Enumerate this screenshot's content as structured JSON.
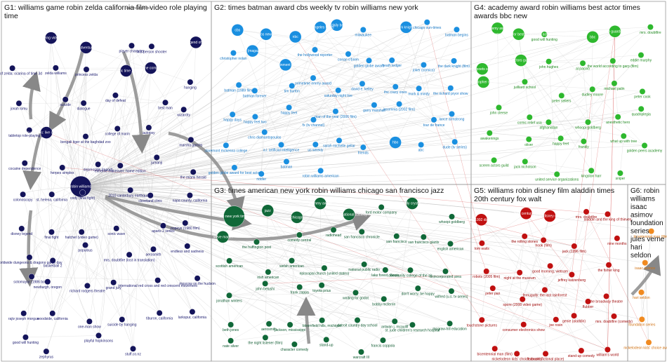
{
  "groups": [
    {
      "id": "G1",
      "title_lines": [
        "G1: williams game robin zelda california film video role playing",
        "time"
      ],
      "color": "#14145a",
      "label_color": "#1a1a6e"
    },
    {
      "id": "G2",
      "title_lines": [
        "G2: times batman award cbs weekly tv robin williams new york"
      ],
      "color": "#1a8fe0",
      "label_color": "#1676c4"
    },
    {
      "id": "G3",
      "title_lines": [
        "G3: times american new york robin williams chicago san francisco jazz"
      ],
      "color": "#106838",
      "label_color": "#0e5a30"
    },
    {
      "id": "G4",
      "title_lines": [
        "G4: academy award robin williams best actor times",
        "awards bbc new"
      ],
      "color": "#2eb82e",
      "label_color": "#228a22"
    },
    {
      "id": "G5",
      "title_lines": [
        "G5: williams robin disney film aladdin times",
        "20th century fox walt"
      ],
      "color": "#c01010",
      "label_color": "#a00c0c"
    },
    {
      "id": "G6",
      "title_lines": [
        "G6: robin",
        "williams",
        "isaac",
        "asimov",
        "foundation",
        "series",
        "jules verne",
        "hari",
        "seldon"
      ],
      "color": "#f08a20",
      "label_color": "#d07010"
    }
  ],
  "nodes": {
    "G1": [
      {
        "label": "robin williams",
        "size": 3
      },
      {
        "label": "role-playing video game",
        "size": 2
      },
      {
        "label": "action-adventure game",
        "size": 2
      },
      {
        "label": "player character",
        "size": 1
      },
      {
        "label": "first-person shooter",
        "size": 1
      },
      {
        "label": "the legend of zelda",
        "size": 2
      },
      {
        "label": "the legend of zelda: ocarina of time 3d",
        "size": 1
      },
      {
        "label": "zelda williams",
        "size": 1
      },
      {
        "label": "princess zelda",
        "size": 1
      },
      {
        "label": "pacific time zone",
        "size": 2
      },
      {
        "label": "tribune company",
        "size": 2
      },
      {
        "label": "hanging",
        "size": 1
      },
      {
        "label": "jonah lomu",
        "size": 1
      },
      {
        "label": "suicide",
        "size": 1
      },
      {
        "label": "dialogue",
        "size": 1
      },
      {
        "label": "day of defeat",
        "size": 1
      },
      {
        "label": "best man",
        "size": 1
      },
      {
        "label": "wizardry",
        "size": 1
      },
      {
        "label": "tabletop role-playing game",
        "size": 1
      },
      {
        "label": "robin williams: live on broadway",
        "size": 2
      },
      {
        "label": "bengali tiger at the baghdad zoo",
        "size": 1
      },
      {
        "label": "college of marin",
        "size": 1
      },
      {
        "label": "autopsy",
        "size": 1
      },
      {
        "label": "marsha garces",
        "size": 1
      },
      {
        "label": "cocaine dependence",
        "size": 1
      },
      {
        "label": "herpes simplex",
        "size": 1
      },
      {
        "label": "depression (mood)",
        "size": 1
      },
      {
        "label": "extreme makeover: home edition",
        "size": 1
      },
      {
        "label": "jumanji",
        "size": 1
      },
      {
        "label": "the miami herald",
        "size": 1
      },
      {
        "label": "colonoscopy",
        "size": 1
      },
      {
        "label": "st. helena, california",
        "size": 1
      },
      {
        "label": "cody (final fight)",
        "size": 1
      },
      {
        "label": "2010 canterbury earthquake",
        "size": 1
      },
      {
        "label": "cleveland clinic",
        "size": 1
      },
      {
        "label": "napa county, california",
        "size": 1
      },
      {
        "label": "disney legend",
        "size": 1
      },
      {
        "label": "final fight",
        "size": 1
      },
      {
        "label": "hatchet (video game)",
        "size": 1
      },
      {
        "label": "sonic wave",
        "size": 1
      },
      {
        "label": "aparis 2 series",
        "size": 1
      },
      {
        "label": "popeye (1980 film)",
        "size": 1
      },
      {
        "label": "worldwide dungeons & dragons game day",
        "size": 1
      },
      {
        "label": "basketball 2",
        "size": 1
      },
      {
        "label": "populous",
        "size": 1
      },
      {
        "label": "mrs. doubtfire (lost in translation)",
        "size": 1
      },
      {
        "label": "aerosmith",
        "size": 1
      },
      {
        "label": "endless and sadness",
        "size": 1
      },
      {
        "label": "sotomayor (1986 book)",
        "size": 1
      },
      {
        "label": "newburgh, oregon",
        "size": 1
      },
      {
        "label": "richard rodgers theatre",
        "size": 1
      },
      {
        "label": "grand jury",
        "size": 1
      },
      {
        "label": "international red cross and red crescent movement",
        "size": 1
      },
      {
        "label": "moscow on the hudson",
        "size": 1
      },
      {
        "label": "rajiv joseph morgue",
        "size": 1
      },
      {
        "label": "woodside, california",
        "size": 1
      },
      {
        "label": "one-man show",
        "size": 1
      },
      {
        "label": "suicide by hanging",
        "size": 1
      },
      {
        "label": "tiburon, california",
        "size": 1
      },
      {
        "label": "larkspur, california",
        "size": 1
      },
      {
        "label": "good will hunting",
        "size": 1
      },
      {
        "label": "zephyrus",
        "size": 1
      },
      {
        "label": "playful hopkinsons",
        "size": 1
      },
      {
        "label": "stuff.co.nz",
        "size": 1
      }
    ],
    "G2": [
      {
        "label": "cbs",
        "size": 2
      },
      {
        "label": "cbs news",
        "size": 2
      },
      {
        "label": "nbc",
        "size": 2
      },
      {
        "label": "los angeles times",
        "size": 2
      },
      {
        "label": "the daily beast",
        "size": 2
      },
      {
        "label": "milwaukee",
        "size": 1
      },
      {
        "label": "the dark knight rises",
        "size": 2
      },
      {
        "label": "chicago sun-times",
        "size": 1
      },
      {
        "label": "batman begins",
        "size": 1
      },
      {
        "label": "christopher nolan",
        "size": 1
      },
      {
        "label": "time (magazine)",
        "size": 2
      },
      {
        "label": "entertainment weekly",
        "size": 2
      },
      {
        "label": "the hollywood reporter",
        "size": 1
      },
      {
        "label": "conan o'brien",
        "size": 1
      },
      {
        "label": "golden globe award",
        "size": 1
      },
      {
        "label": "heath ledger",
        "size": 1
      },
      {
        "label": "joker (comics)",
        "size": 1
      },
      {
        "label": "the dark knight (film)",
        "size": 1
      },
      {
        "label": "batman (1989 film)",
        "size": 1
      },
      {
        "label": "batman forever",
        "size": 1
      },
      {
        "label": "tim burton",
        "size": 1
      },
      {
        "label": "primetime emmy award",
        "size": 1
      },
      {
        "label": "saturday night live",
        "size": 1
      },
      {
        "label": "david e. kelley",
        "size": 1
      },
      {
        "label": "the crazy ones",
        "size": 1
      },
      {
        "label": "mork & mindy",
        "size": 1
      },
      {
        "label": "the richard pryor show",
        "size": 1
      },
      {
        "label": "happy days",
        "size": 1
      },
      {
        "label": "happy feet two",
        "size": 1
      },
      {
        "label": "happy feet",
        "size": 1
      },
      {
        "label": "fx (tv channel)",
        "size": 1
      },
      {
        "label": "man of the year (2006 film)",
        "size": 1
      },
      {
        "label": "garry marshall",
        "size": 1
      },
      {
        "label": "insomnia (2002 film)",
        "size": 1
      },
      {
        "label": "tour de france",
        "size": 1
      },
      {
        "label": "lance armstrong",
        "size": 1
      },
      {
        "label": "claremont mckenna college",
        "size": 1
      },
      {
        "label": "chris diamantopoulos",
        "size": 1
      },
      {
        "label": "a.i. artificial intelligence",
        "size": 1
      },
      {
        "label": "us weekly",
        "size": 1
      },
      {
        "label": "sarah michelle gellar",
        "size": 1
      },
      {
        "label": "friends",
        "size": 1
      },
      {
        "label": "hbo",
        "size": 2
      },
      {
        "label": "abc",
        "size": 1
      },
      {
        "label": "dude (tv series)",
        "size": 1
      },
      {
        "label": "golden globe award for best actor",
        "size": 1
      },
      {
        "label": "riddler",
        "size": 1
      },
      {
        "label": "batman",
        "size": 1
      },
      {
        "label": "robin williams american",
        "size": 1
      }
    ],
    "G3": [
      {
        "label": "the new york times",
        "size": 3
      },
      {
        "label": "jazz",
        "size": 2
      },
      {
        "label": "chicago",
        "size": 2
      },
      {
        "label": "grammy award",
        "size": 2
      },
      {
        "label": "improvisational comedy",
        "size": 2
      },
      {
        "label": "ford motor company",
        "size": 1
      },
      {
        "label": "billy crystal",
        "size": 2
      },
      {
        "label": "whoopi goldberg",
        "size": 1
      },
      {
        "label": "steve martin",
        "size": 2
      },
      {
        "label": "the huffington post",
        "size": 1
      },
      {
        "label": "comedy central",
        "size": 1
      },
      {
        "label": "radiohead",
        "size": 1
      },
      {
        "label": "san francisco chronicle",
        "size": 1
      },
      {
        "label": "san francisco",
        "size": 1
      },
      {
        "label": "san francisco giants",
        "size": 1
      },
      {
        "label": "english american",
        "size": 1
      },
      {
        "label": "scottish american",
        "size": 1
      },
      {
        "label": "irish american",
        "size": 1
      },
      {
        "label": "welsh american",
        "size": 1
      },
      {
        "label": "episcopal church (united states)",
        "size": 1
      },
      {
        "label": "national public radio",
        "size": 1
      },
      {
        "label": "lake forest, illinois",
        "size": 1
      },
      {
        "label": "community college of the air",
        "size": 1
      },
      {
        "label": "unincorporated area",
        "size": 1
      },
      {
        "label": "jonathan winters",
        "size": 1
      },
      {
        "label": "john belushi",
        "size": 1
      },
      {
        "label": "frank zappa",
        "size": 1
      },
      {
        "label": "toyota prius",
        "size": 1
      },
      {
        "label": "waiting for godot",
        "size": 1
      },
      {
        "label": "bobby mcferrin",
        "size": 1
      },
      {
        "label": "don't worry, be happy",
        "size": 1
      },
      {
        "label": "wilfred (u.s. tv series)",
        "size": 1
      },
      {
        "label": "beth jones",
        "size": 1
      },
      {
        "label": "aerosmith",
        "size": 1
      },
      {
        "label": "jackson, mississippi",
        "size": 1
      },
      {
        "label": "bloomfield hills, michigan",
        "size": 1
      },
      {
        "label": "detroit country day school",
        "size": 1
      },
      {
        "label": "antwan j. mcauliff",
        "size": 1
      },
      {
        "label": "st. jude children's research hospital",
        "size": 1
      },
      {
        "label": "mcgraw-hill education",
        "size": 1
      },
      {
        "label": "nate silver",
        "size": 1
      },
      {
        "label": "the night listener (film)",
        "size": 1
      },
      {
        "label": "character comedy",
        "size": 1
      },
      {
        "label": "stand-up",
        "size": 1
      },
      {
        "label": "warcraft III",
        "size": 1
      },
      {
        "label": "francis coppola",
        "size": 1
      }
    ],
    "G4": [
      {
        "label": "academy awards",
        "size": 2
      },
      {
        "label": "academy award for best supporting actor",
        "size": 2
      },
      {
        "label": "good will hunting",
        "size": 1
      },
      {
        "label": "bbc",
        "size": 2
      },
      {
        "label": "the guardian",
        "size": 2
      },
      {
        "label": "mrs. doubtfire",
        "size": 1
      },
      {
        "label": "dead poets society",
        "size": 2
      },
      {
        "label": "screen actors guild award",
        "size": 2
      },
      {
        "label": "john hughes",
        "size": 1
      },
      {
        "label": "al pacino",
        "size": 1
      },
      {
        "label": "the world according to garp (film)",
        "size": 1
      },
      {
        "label": "eddie murphy",
        "size": 1
      },
      {
        "label": "christopher reeve",
        "size": 2
      },
      {
        "label": "juilliard school",
        "size": 1
      },
      {
        "label": "peter sellers",
        "size": 1
      },
      {
        "label": "dudley moore",
        "size": 1
      },
      {
        "label": "michael palin",
        "size": 1
      },
      {
        "label": "peter cook",
        "size": 1
      },
      {
        "label": "john cleese",
        "size": 1
      },
      {
        "label": "comic relief usa",
        "size": 1
      },
      {
        "label": "afghanistan",
        "size": 1
      },
      {
        "label": "whoopi goldberg",
        "size": 1
      },
      {
        "label": "anesthetic hero",
        "size": 1
      },
      {
        "label": "quadriplegia",
        "size": 1
      },
      {
        "label": "awakenings",
        "size": 1
      },
      {
        "label": "oliver",
        "size": 1
      },
      {
        "label": "happy feet",
        "size": 1
      },
      {
        "label": "frankly",
        "size": 1
      },
      {
        "label": "what up with tree",
        "size": 1
      },
      {
        "label": "golden peers academy",
        "size": 1
      },
      {
        "label": "screen actors guild",
        "size": 1
      },
      {
        "label": "jack nicholson",
        "size": 1
      },
      {
        "label": "united service organizations",
        "size": 1
      },
      {
        "label": "kingston harr",
        "size": 1
      },
      {
        "label": "sniper",
        "size": 1
      }
    ],
    "G5": [
      {
        "label": "aladdin (1992 disney film)",
        "size": 2
      },
      {
        "label": "20th century fox",
        "size": 2
      },
      {
        "label": "the walt disney company",
        "size": 2
      },
      {
        "label": "mrs. doubtfire",
        "size": 1
      },
      {
        "label": "aladdin and the king of thieves",
        "size": 1
      },
      {
        "label": "tom waits",
        "size": 1
      },
      {
        "label": "the rolling stones",
        "size": 1
      },
      {
        "label": "hook (film)",
        "size": 1
      },
      {
        "label": "jack (1996 film)",
        "size": 1
      },
      {
        "label": "nine months",
        "size": 1
      },
      {
        "label": "robots (2005 film)",
        "size": 1
      },
      {
        "label": "night at the museum",
        "size": 1
      },
      {
        "label": "good morning, vietnam",
        "size": 1
      },
      {
        "label": "jeffrey katzenberg",
        "size": 1
      },
      {
        "label": "the fisher king",
        "size": 1
      },
      {
        "label": "peter pan",
        "size": 1
      },
      {
        "label": "spore (2008 video game)",
        "size": 1
      },
      {
        "label": "fernugully: the last rainforest",
        "size": 1
      },
      {
        "label": "flubber",
        "size": 1
      },
      {
        "label": "the broadway theatre",
        "size": 1
      },
      {
        "label": "touchstone pictures",
        "size": 1
      },
      {
        "label": "consumer electronics show",
        "size": 1
      },
      {
        "label": "joe rosin",
        "size": 1
      },
      {
        "label": "genie (aladdin)",
        "size": 1
      },
      {
        "label": "mrs. doubtfire (comedy)",
        "size": 1
      },
      {
        "label": "bicentennial man (film)",
        "size": 1
      },
      {
        "label": "nickelodeon kids' choice awards",
        "size": 1
      },
      {
        "label": "flatbush (fictional place)",
        "size": 1
      },
      {
        "label": "stand-up comedy",
        "size": 1
      },
      {
        "label": "william's world",
        "size": 1
      }
    ],
    "G6": [
      {
        "label": "bicentennial man (film)",
        "size": 1
      },
      {
        "label": "isaac asimov",
        "size": 1
      },
      {
        "label": "hari seldon",
        "size": 1
      },
      {
        "label": "foundation series",
        "size": 1
      },
      {
        "label": "nickelodeon kids' choice awards",
        "size": 1
      }
    ]
  },
  "header_notes": [
    "one hour photo"
  ]
}
